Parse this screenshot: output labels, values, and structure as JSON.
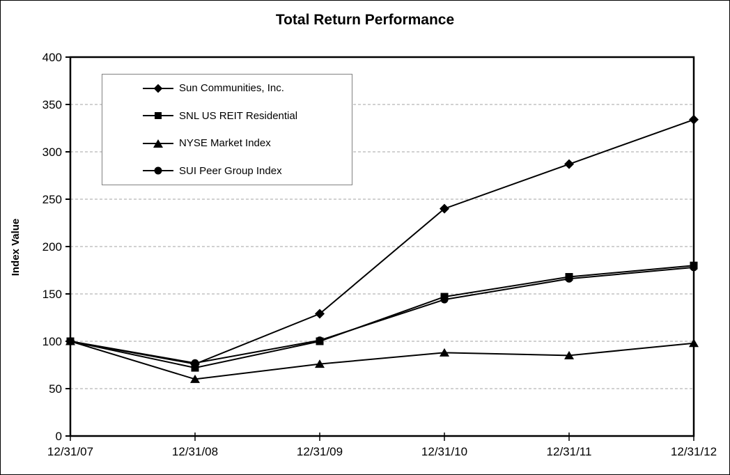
{
  "page": {
    "background": "#ffffff",
    "border_color": "#000000"
  },
  "chart_data": {
    "type": "line",
    "title": "Total Return Performance",
    "xlabel": "",
    "ylabel": "Index Value",
    "categories": [
      "12/31/07",
      "12/31/08",
      "12/31/09",
      "12/31/10",
      "12/31/11",
      "12/31/12"
    ],
    "series": [
      {
        "name": "Sun Communities, Inc.",
        "marker": "diamond",
        "values": [
          100,
          76,
          129,
          240,
          287,
          334
        ]
      },
      {
        "name": "SNL US REIT Residential",
        "marker": "square",
        "values": [
          100,
          72,
          100,
          147,
          168,
          180
        ]
      },
      {
        "name": "NYSE Market Index",
        "marker": "triangle",
        "values": [
          100,
          60,
          76,
          88,
          85,
          98
        ]
      },
      {
        "name": "SUI Peer Group Index",
        "marker": "circle",
        "values": [
          100,
          77,
          101,
          144,
          166,
          178
        ]
      }
    ],
    "ylim": [
      0,
      400
    ],
    "ytick_step": 50,
    "grid": true,
    "gridline_color": "#a3a3a3",
    "gridline_style": "dashed",
    "series_color": "#000000",
    "legend_position": "upper-left",
    "legend_border_color": "#808080"
  }
}
